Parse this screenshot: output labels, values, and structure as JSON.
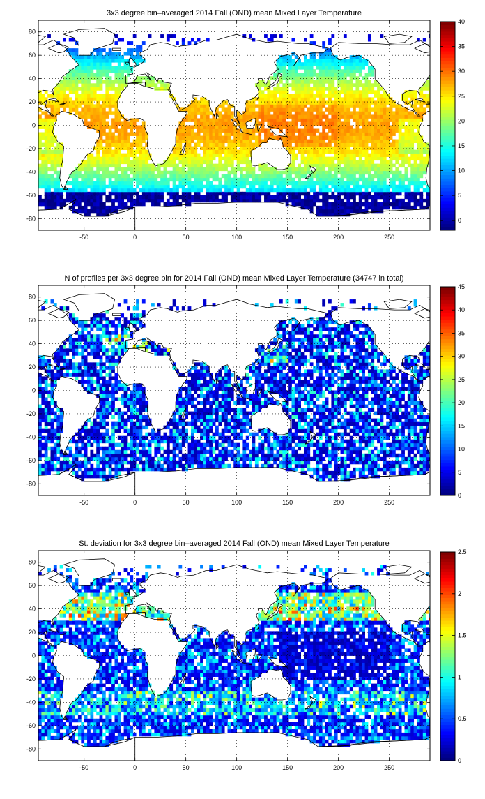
{
  "chart_data": [
    {
      "type": "heatmap",
      "title": "3x3 degree bin–averaged 2014 Fall (OND) mean Mixed Layer Temperature",
      "x_ticks": [
        -50,
        0,
        50,
        100,
        150,
        200,
        250
      ],
      "y_ticks": [
        -80,
        -60,
        -40,
        -20,
        0,
        20,
        40,
        60,
        80
      ],
      "xlim": [
        -95,
        290
      ],
      "ylim": [
        -90,
        90
      ],
      "grid": true,
      "colorbar": {
        "range": [
          -2,
          40
        ],
        "ticks": [
          0,
          5,
          10,
          15,
          20,
          25,
          30,
          35,
          40
        ],
        "colormap": "jet"
      },
      "bin_size_deg": 3,
      "field": "temperature",
      "fill_fraction": 0.88
    },
    {
      "type": "heatmap",
      "title": "N of profiles per 3x3 degree bin for 2014 Fall (OND) mean Mixed Layer Temperature  (34747 in total)",
      "x_ticks": [
        -50,
        0,
        50,
        100,
        150,
        200,
        250
      ],
      "y_ticks": [
        -80,
        -60,
        -40,
        -20,
        0,
        20,
        40,
        60,
        80
      ],
      "xlim": [
        -95,
        290
      ],
      "ylim": [
        -90,
        90
      ],
      "grid": true,
      "colorbar": {
        "range": [
          0,
          45
        ],
        "ticks": [
          0,
          5,
          10,
          15,
          20,
          25,
          30,
          35,
          40,
          45
        ],
        "colormap": "jet"
      },
      "bin_size_deg": 3,
      "field": "count",
      "fill_fraction": 0.8
    },
    {
      "type": "heatmap",
      "title": "St. deviation for 3x3 degree bin–averaged 2014 Fall (OND) mean Mixed Layer Temperature",
      "x_ticks": [
        -50,
        0,
        50,
        100,
        150,
        200,
        250
      ],
      "y_ticks": [
        -80,
        -60,
        -40,
        -20,
        0,
        20,
        40,
        60,
        80
      ],
      "xlim": [
        -95,
        290
      ],
      "ylim": [
        -90,
        90
      ],
      "grid": true,
      "colorbar": {
        "range": [
          0,
          2.5
        ],
        "ticks": [
          0,
          0.5,
          1,
          1.5,
          2,
          2.5
        ],
        "colormap": "jet"
      },
      "bin_size_deg": 3,
      "field": "stdev",
      "fill_fraction": 0.85
    }
  ]
}
